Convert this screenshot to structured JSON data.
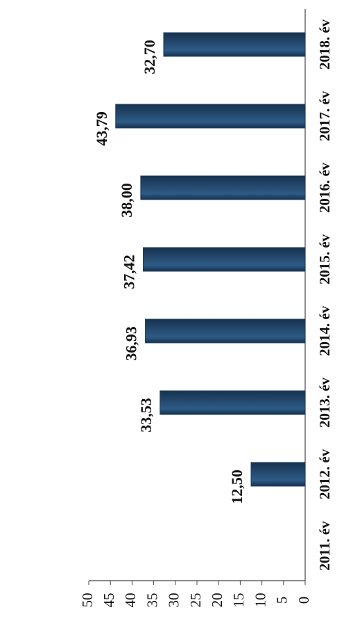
{
  "chart_data": {
    "type": "bar",
    "categories": [
      "2011. év",
      "2012. év",
      "2013. év",
      "2014. év",
      "2015. év",
      "2016. év",
      "2017. év",
      "2018. év"
    ],
    "values": [
      null,
      12.5,
      33.53,
      36.93,
      37.42,
      38.0,
      43.79,
      32.7
    ],
    "value_labels": [
      null,
      "12,50",
      "33,53",
      "36,93",
      "37,42",
      "38,00",
      "43,79",
      "32,70"
    ],
    "color": "#1f3d60",
    "ylim": [
      0,
      50
    ],
    "yticks": [
      0,
      5,
      10,
      15,
      20,
      25,
      30,
      35,
      40,
      45,
      50
    ]
  }
}
